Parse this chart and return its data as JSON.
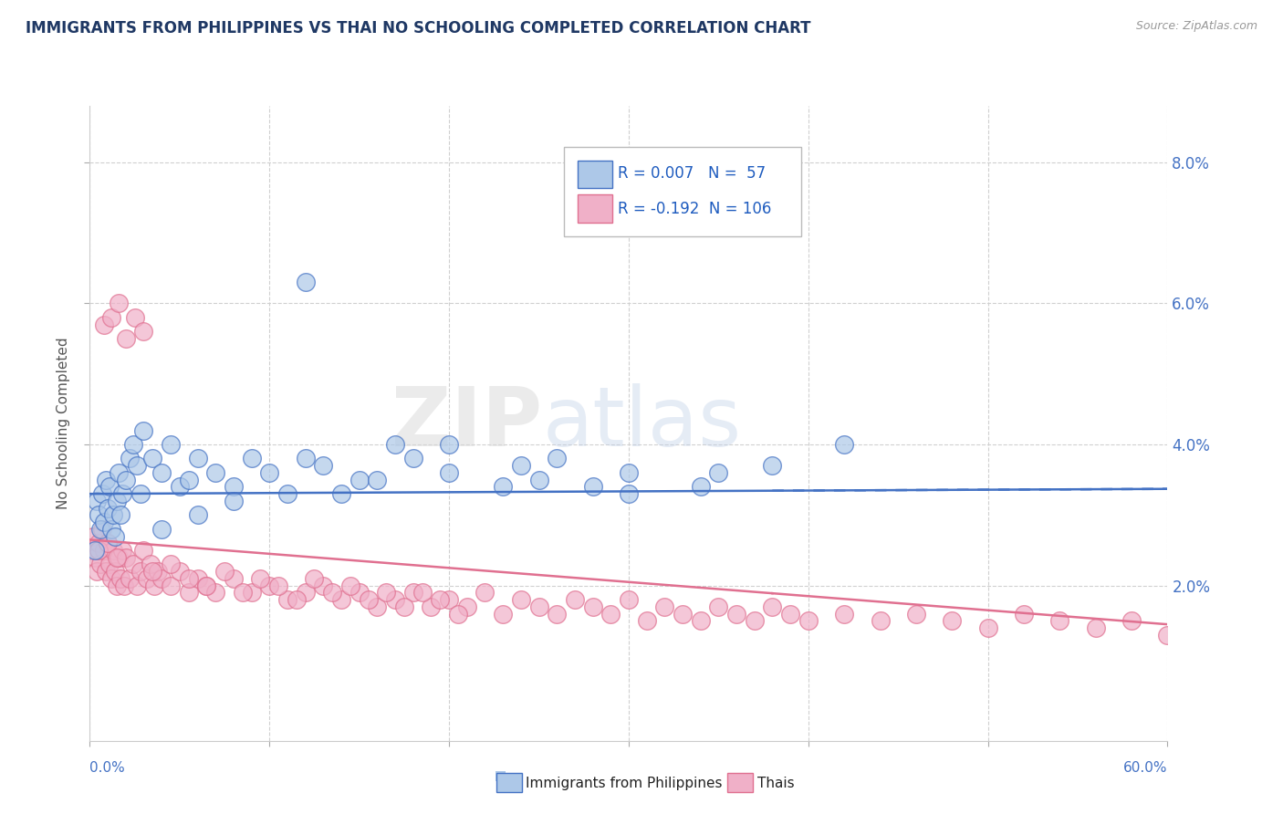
{
  "title": "IMMIGRANTS FROM PHILIPPINES VS THAI NO SCHOOLING COMPLETED CORRELATION CHART",
  "source": "Source: ZipAtlas.com",
  "ylabel": "No Schooling Completed",
  "xmin": 0.0,
  "xmax": 0.6,
  "ymin": -0.002,
  "ymax": 0.088,
  "ytick_vals": [
    0.02,
    0.04,
    0.06,
    0.08
  ],
  "ytick_labels": [
    "2.0%",
    "4.0%",
    "6.0%",
    "8.0%"
  ],
  "legend_line1": "R = 0.007   N =  57",
  "legend_line2": "R = -0.192  N = 106",
  "color_philippines": "#adc8e8",
  "color_thais": "#f0b0c8",
  "color_edge_philippines": "#4472c4",
  "color_edge_thais": "#e07090",
  "color_line_philippines": "#4472c4",
  "color_line_thais": "#e07090",
  "color_title": "#1f3864",
  "color_legend_text": "#1f5cbf",
  "color_axis_labels": "#4472c4",
  "color_grid": "#d0d0d0",
  "philippines_x": [
    0.003,
    0.004,
    0.005,
    0.006,
    0.007,
    0.008,
    0.009,
    0.01,
    0.011,
    0.012,
    0.013,
    0.014,
    0.015,
    0.016,
    0.017,
    0.018,
    0.02,
    0.022,
    0.024,
    0.026,
    0.028,
    0.03,
    0.035,
    0.04,
    0.045,
    0.05,
    0.055,
    0.06,
    0.07,
    0.08,
    0.09,
    0.1,
    0.11,
    0.12,
    0.13,
    0.15,
    0.17,
    0.2,
    0.23,
    0.26,
    0.3,
    0.34,
    0.38,
    0.42,
    0.12,
    0.16,
    0.2,
    0.24,
    0.28,
    0.04,
    0.06,
    0.08,
    0.3,
    0.35,
    0.25,
    0.18,
    0.14
  ],
  "philippines_y": [
    0.025,
    0.032,
    0.03,
    0.028,
    0.033,
    0.029,
    0.035,
    0.031,
    0.034,
    0.028,
    0.03,
    0.027,
    0.032,
    0.036,
    0.03,
    0.033,
    0.035,
    0.038,
    0.04,
    0.037,
    0.033,
    0.042,
    0.038,
    0.036,
    0.04,
    0.034,
    0.035,
    0.038,
    0.036,
    0.034,
    0.038,
    0.036,
    0.033,
    0.063,
    0.037,
    0.035,
    0.04,
    0.036,
    0.034,
    0.038,
    0.036,
    0.034,
    0.037,
    0.04,
    0.038,
    0.035,
    0.04,
    0.037,
    0.034,
    0.028,
    0.03,
    0.032,
    0.033,
    0.036,
    0.035,
    0.038,
    0.033
  ],
  "thais_x": [
    0.001,
    0.002,
    0.003,
    0.004,
    0.005,
    0.006,
    0.007,
    0.008,
    0.009,
    0.01,
    0.011,
    0.012,
    0.013,
    0.014,
    0.015,
    0.016,
    0.017,
    0.018,
    0.019,
    0.02,
    0.022,
    0.024,
    0.026,
    0.028,
    0.03,
    0.032,
    0.034,
    0.036,
    0.038,
    0.04,
    0.045,
    0.05,
    0.055,
    0.06,
    0.065,
    0.07,
    0.08,
    0.09,
    0.1,
    0.11,
    0.12,
    0.13,
    0.14,
    0.15,
    0.16,
    0.17,
    0.18,
    0.19,
    0.2,
    0.21,
    0.22,
    0.23,
    0.24,
    0.25,
    0.26,
    0.27,
    0.28,
    0.29,
    0.3,
    0.31,
    0.32,
    0.33,
    0.34,
    0.35,
    0.36,
    0.37,
    0.38,
    0.39,
    0.4,
    0.42,
    0.44,
    0.46,
    0.48,
    0.5,
    0.52,
    0.54,
    0.56,
    0.58,
    0.6,
    0.008,
    0.012,
    0.016,
    0.02,
    0.025,
    0.03,
    0.005,
    0.01,
    0.015,
    0.035,
    0.045,
    0.055,
    0.065,
    0.075,
    0.085,
    0.095,
    0.105,
    0.115,
    0.125,
    0.135,
    0.145,
    0.155,
    0.165,
    0.175,
    0.185,
    0.195,
    0.205
  ],
  "thais_y": [
    0.025,
    0.027,
    0.024,
    0.022,
    0.026,
    0.023,
    0.028,
    0.025,
    0.022,
    0.026,
    0.023,
    0.021,
    0.025,
    0.022,
    0.02,
    0.024,
    0.021,
    0.025,
    0.02,
    0.024,
    0.021,
    0.023,
    0.02,
    0.022,
    0.025,
    0.021,
    0.023,
    0.02,
    0.022,
    0.021,
    0.02,
    0.022,
    0.019,
    0.021,
    0.02,
    0.019,
    0.021,
    0.019,
    0.02,
    0.018,
    0.019,
    0.02,
    0.018,
    0.019,
    0.017,
    0.018,
    0.019,
    0.017,
    0.018,
    0.017,
    0.019,
    0.016,
    0.018,
    0.017,
    0.016,
    0.018,
    0.017,
    0.016,
    0.018,
    0.015,
    0.017,
    0.016,
    0.015,
    0.017,
    0.016,
    0.015,
    0.017,
    0.016,
    0.015,
    0.016,
    0.015,
    0.016,
    0.015,
    0.014,
    0.016,
    0.015,
    0.014,
    0.015,
    0.013,
    0.057,
    0.058,
    0.06,
    0.055,
    0.058,
    0.056,
    0.025,
    0.026,
    0.024,
    0.022,
    0.023,
    0.021,
    0.02,
    0.022,
    0.019,
    0.021,
    0.02,
    0.018,
    0.021,
    0.019,
    0.02,
    0.018,
    0.019,
    0.017,
    0.019,
    0.018,
    0.016
  ],
  "phil_trend_x": [
    0.0,
    0.6
  ],
  "phil_trend_y": [
    0.033,
    0.0337
  ],
  "thai_trend_x": [
    0.0,
    0.6
  ],
  "thai_trend_y": [
    0.0265,
    0.0145
  ]
}
